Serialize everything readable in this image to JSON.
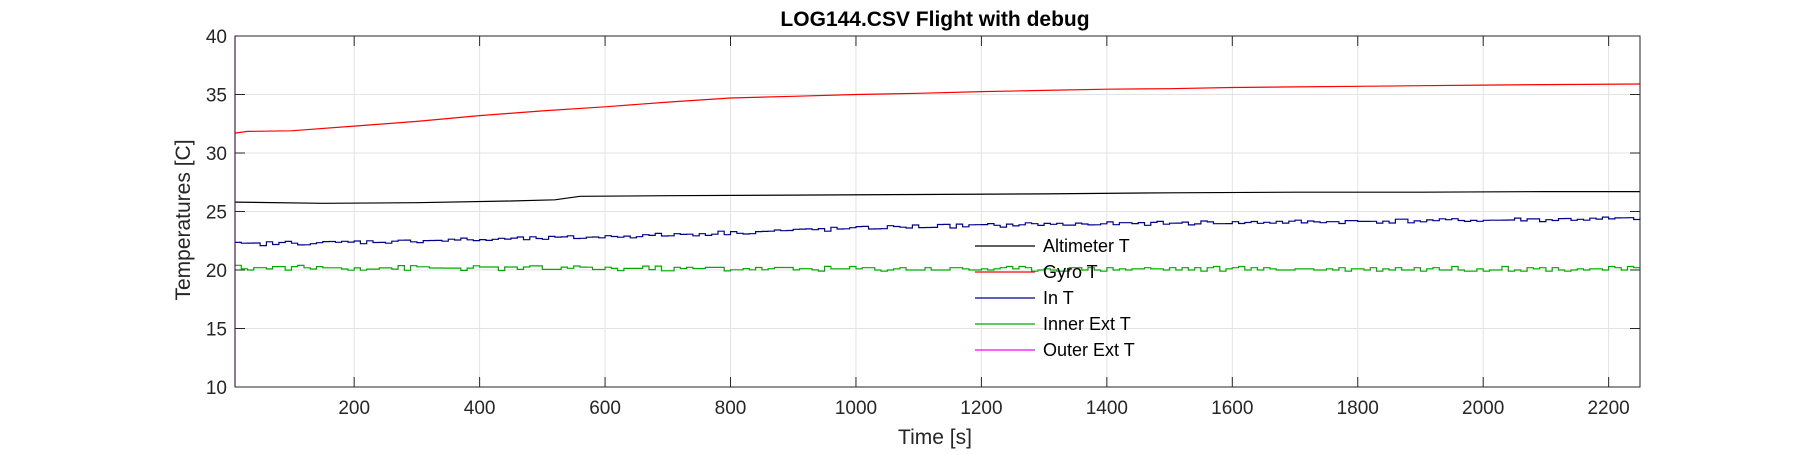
{
  "chart_data": {
    "type": "line",
    "title": "LOG144.CSV  Flight with debug",
    "xlabel": "Time [s]",
    "ylabel": "Temperatures [C]",
    "xlim": [
      10,
      2250
    ],
    "ylim": [
      10,
      40
    ],
    "xticks": [
      200,
      400,
      600,
      800,
      1000,
      1200,
      1400,
      1600,
      1800,
      2000,
      2200
    ],
    "yticks": [
      10,
      15,
      20,
      25,
      30,
      35,
      40
    ],
    "grid": true,
    "legend_position": "center",
    "series": [
      {
        "name": "Altimeter T",
        "color": "#000000",
        "points": [
          [
            10,
            25.8
          ],
          [
            150,
            25.7
          ],
          [
            300,
            25.75
          ],
          [
            450,
            25.9
          ],
          [
            520,
            26.0
          ],
          [
            560,
            26.3
          ],
          [
            700,
            26.35
          ],
          [
            900,
            26.4
          ],
          [
            1100,
            26.45
          ],
          [
            1300,
            26.5
          ],
          [
            1500,
            26.6
          ],
          [
            1700,
            26.65
          ],
          [
            1900,
            26.65
          ],
          [
            2100,
            26.7
          ],
          [
            2250,
            26.7
          ]
        ]
      },
      {
        "name": "Gyro T",
        "color": "#ff0000",
        "points": [
          [
            10,
            31.7
          ],
          [
            30,
            31.85
          ],
          [
            100,
            31.9
          ],
          [
            200,
            32.3
          ],
          [
            300,
            32.7
          ],
          [
            400,
            33.2
          ],
          [
            500,
            33.6
          ],
          [
            600,
            33.95
          ],
          [
            700,
            34.35
          ],
          [
            800,
            34.7
          ],
          [
            900,
            34.85
          ],
          [
            1000,
            35.0
          ],
          [
            1100,
            35.1
          ],
          [
            1200,
            35.25
          ],
          [
            1300,
            35.35
          ],
          [
            1400,
            35.45
          ],
          [
            1500,
            35.5
          ],
          [
            1600,
            35.6
          ],
          [
            1700,
            35.65
          ],
          [
            1800,
            35.7
          ],
          [
            1900,
            35.75
          ],
          [
            2000,
            35.8
          ],
          [
            2100,
            35.85
          ],
          [
            2250,
            35.9
          ]
        ]
      },
      {
        "name": "In T",
        "color": "#00008b",
        "points": [
          [
            10,
            22.2
          ],
          [
            300,
            22.5
          ],
          [
            500,
            22.7
          ],
          [
            700,
            23.0
          ],
          [
            900,
            23.4
          ],
          [
            1100,
            23.7
          ],
          [
            1300,
            23.9
          ],
          [
            1500,
            24.0
          ],
          [
            1700,
            24.1
          ],
          [
            1900,
            24.2
          ],
          [
            2100,
            24.3
          ],
          [
            2250,
            24.4
          ]
        ],
        "noise": 0.2,
        "step": 10
      },
      {
        "name": "Inner Ext T",
        "color": "#00aa00",
        "points": [
          [
            10,
            20.2
          ],
          [
            1000,
            20.1
          ],
          [
            2250,
            20.1
          ]
        ],
        "noise": 0.25,
        "step": 10
      },
      {
        "name": "Outer Ext T",
        "color": "#ff00ff",
        "points": [
          [
            10,
            10
          ],
          [
            10,
            40
          ]
        ]
      }
    ]
  }
}
